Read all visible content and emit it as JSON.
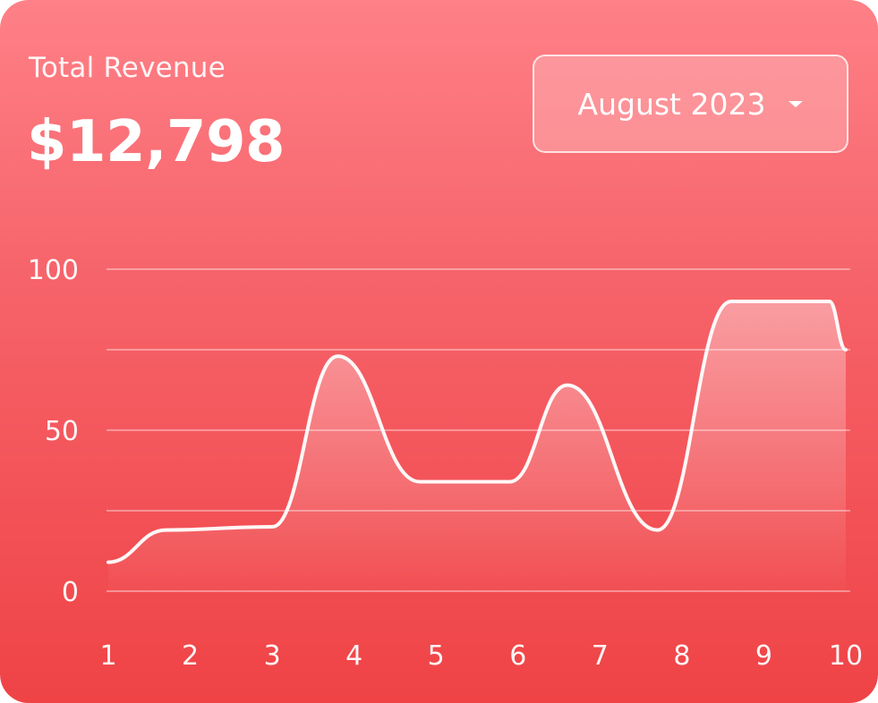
{
  "header": {
    "title": "Total Revenue",
    "amount": "$12,798"
  },
  "month_select": {
    "selected": "August 2023"
  },
  "icons": {
    "dropdown": "chevron-down-icon"
  },
  "colors": {
    "background_top": "#ff8087",
    "background_bottom": "#ef4346",
    "line": "#ffffff"
  },
  "chart_data": {
    "type": "area",
    "x": [
      1,
      1.7,
      3,
      3.8,
      4.8,
      5.9,
      6.6,
      7.7,
      8.6,
      9.8,
      10
    ],
    "y": [
      9,
      19,
      20,
      73,
      34,
      34,
      64,
      19,
      90,
      90,
      75
    ],
    "x_ticks": [
      "1",
      "2",
      "3",
      "4",
      "5",
      "6",
      "7",
      "8",
      "9",
      "10"
    ],
    "y_ticks": [
      "0",
      "50",
      "100"
    ],
    "ylim": [
      0,
      100
    ],
    "grid": true
  }
}
